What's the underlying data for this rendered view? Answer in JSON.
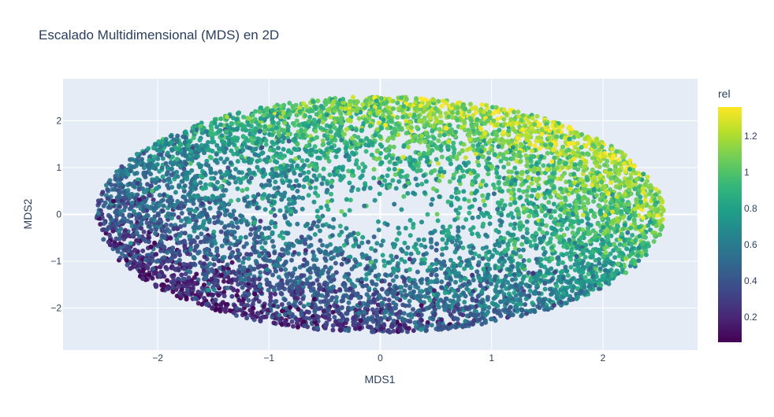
{
  "chart_data": {
    "type": "scatter",
    "title": "Escalado Multidimensional (MDS) en 2D",
    "xlabel": "MDS1",
    "ylabel": "MDS2",
    "xlim": [
      -2.85,
      2.85
    ],
    "ylim": [
      -2.9,
      2.9
    ],
    "x_ticks": [
      -2,
      -1,
      0,
      1,
      2
    ],
    "x_tick_labels": [
      "−2",
      "−1",
      "0",
      "1",
      "2"
    ],
    "y_ticks": [
      -2,
      -1,
      0,
      1,
      2
    ],
    "y_tick_labels": [
      "−2",
      "−1",
      "0",
      "1",
      "2"
    ],
    "grid": true,
    "plot_background": "#E5ECF6",
    "colorbar": {
      "title": "rel",
      "colorscale": "Viridis",
      "range": [
        0.06,
        1.36
      ],
      "ticks": [
        0.2,
        0.4,
        0.6,
        0.8,
        1.0,
        1.2
      ],
      "tick_labels": [
        "0.2",
        "0.4",
        "0.6",
        "0.8",
        "1",
        "1.2"
      ]
    },
    "point_cloud": {
      "shape": "filled ellipse, denser near the rim",
      "n_points": 6500,
      "x_semi_axis": 2.55,
      "y_semi_axis": 2.52,
      "center": [
        0,
        0
      ],
      "rel_low": 0.1,
      "rel_high": 1.32,
      "gradient_direction": [
        0.55,
        0.65
      ],
      "edge_emphasis": 0.25,
      "noise": 0.14,
      "marker_opacity": 0.95
    },
    "points_sample": [
      {
        "x": 2.3,
        "y": 1.1,
        "rel": 1.2
      },
      {
        "x": 1.5,
        "y": 1.6,
        "rel": 1.1
      },
      {
        "x": 0.6,
        "y": 2.35,
        "rel": 1.05
      },
      {
        "x": -2.3,
        "y": -0.9,
        "rel": 0.4
      },
      {
        "x": -0.5,
        "y": -2.4,
        "rel": 0.35
      },
      {
        "x": 0.0,
        "y": 0.0,
        "rel": 0.6
      }
    ]
  }
}
